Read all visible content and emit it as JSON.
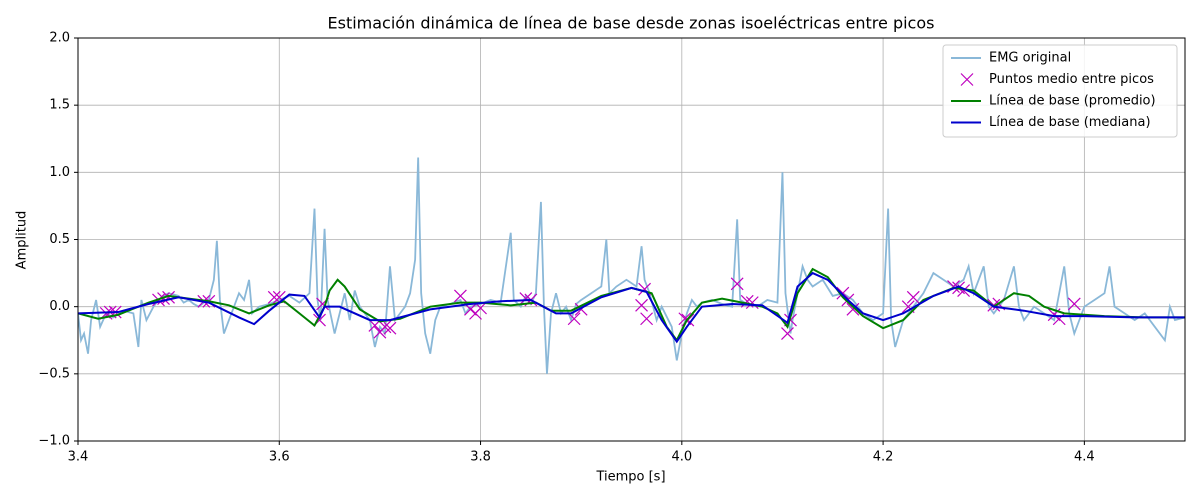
{
  "chart_data": {
    "type": "line",
    "title": "Estimación dinámica de línea de base desde zonas isoeléctricas entre picos",
    "xlabel": "Tiempo [s]",
    "ylabel": "Amplitud",
    "xlim": [
      3.4,
      4.5
    ],
    "ylim": [
      -1.0,
      2.0
    ],
    "xticks": [
      3.4,
      3.6,
      3.8,
      {
        "value": 4.0,
        "label": "4.0"
      },
      4.2,
      4.4
    ],
    "yticks": [
      {
        "value": -1.0,
        "label": "−1.0"
      },
      {
        "value": -0.5,
        "label": "−0.5"
      },
      {
        "value": 0.0,
        "label": "0.0"
      },
      {
        "value": 0.5,
        "label": "0.5"
      },
      {
        "value": 1.0,
        "label": "1.0"
      },
      {
        "value": 1.5,
        "label": "1.5"
      },
      {
        "value": 2.0,
        "label": "2.0"
      }
    ],
    "grid": true,
    "legend": "upper right",
    "series": [
      {
        "name": "EMG original",
        "type": "line",
        "color": "#8ab8d8",
        "x": [
          3.4,
          3.403,
          3.406,
          3.41,
          3.413,
          3.418,
          3.422,
          3.428,
          3.435,
          3.445,
          3.455,
          3.46,
          3.463,
          3.468,
          3.475,
          3.48,
          3.485,
          3.49,
          3.5,
          3.505,
          3.51,
          3.515,
          3.52,
          3.525,
          3.53,
          3.535,
          3.538,
          3.541,
          3.545,
          3.55,
          3.555,
          3.56,
          3.565,
          3.57,
          3.573,
          3.58,
          3.59,
          3.6,
          3.61,
          3.62,
          3.63,
          3.635,
          3.638,
          3.641,
          3.645,
          3.648,
          3.655,
          3.66,
          3.665,
          3.67,
          3.675,
          3.68,
          3.685,
          3.69,
          3.695,
          3.7,
          3.705,
          3.71,
          3.715,
          3.72,
          3.725,
          3.73,
          3.735,
          3.738,
          3.741,
          3.745,
          3.75,
          3.755,
          3.76,
          3.77,
          3.78,
          3.785,
          3.79,
          3.8,
          3.81,
          3.82,
          3.83,
          3.833,
          3.84,
          3.845,
          3.85,
          3.855,
          3.86,
          3.863,
          3.866,
          3.87,
          3.875,
          3.88,
          3.885,
          3.89,
          3.895,
          3.9,
          3.91,
          3.92,
          3.925,
          3.928,
          3.935,
          3.945,
          3.955,
          3.96,
          3.963,
          3.968,
          3.975,
          3.98,
          3.99,
          3.995,
          4.0,
          4.005,
          4.01,
          4.015,
          4.02,
          4.03,
          4.04,
          4.05,
          4.055,
          4.058,
          4.065,
          4.075,
          4.085,
          4.095,
          4.1,
          4.103,
          4.108,
          4.11,
          4.115,
          4.12,
          4.125,
          4.13,
          4.14,
          4.15,
          4.16,
          4.17,
          4.18,
          4.19,
          4.2,
          4.205,
          4.208,
          4.212,
          4.216,
          4.22,
          4.23,
          4.24,
          4.25,
          4.26,
          4.27,
          4.28,
          4.285,
          4.29,
          4.3,
          4.305,
          4.31,
          4.32,
          4.33,
          4.335,
          4.34,
          4.35,
          4.36,
          4.37,
          4.38,
          4.385,
          4.39,
          4.4,
          4.41,
          4.42,
          4.425,
          4.43,
          4.44,
          4.45,
          4.46,
          4.47,
          4.48,
          4.485,
          4.49,
          4.5
        ],
        "values": [
          -0.05,
          -0.25,
          -0.2,
          -0.35,
          -0.1,
          0.05,
          -0.15,
          -0.05,
          -0.08,
          -0.03,
          -0.05,
          -0.3,
          0.05,
          -0.1,
          0.0,
          0.05,
          0.08,
          0.1,
          0.08,
          0.03,
          0.05,
          0.02,
          0.0,
          0.03,
          0.05,
          0.2,
          0.49,
          0.05,
          -0.2,
          -0.1,
          0.0,
          0.1,
          0.05,
          0.2,
          -0.05,
          0.0,
          0.02,
          0.05,
          0.08,
          0.03,
          0.1,
          0.73,
          0.05,
          -0.1,
          0.58,
          0.05,
          -0.2,
          -0.05,
          0.1,
          -0.1,
          0.12,
          0.0,
          -0.05,
          -0.1,
          -0.3,
          -0.15,
          -0.2,
          0.3,
          -0.1,
          -0.05,
          0.0,
          0.1,
          0.35,
          1.11,
          0.1,
          -0.2,
          -0.35,
          -0.1,
          0.0,
          0.02,
          0.05,
          -0.05,
          0.0,
          0.02,
          0.05,
          0.03,
          0.55,
          0.05,
          0.0,
          0.08,
          0.02,
          0.1,
          0.78,
          0.0,
          -0.5,
          -0.05,
          0.1,
          -0.05,
          0.0,
          -0.1,
          0.02,
          0.05,
          0.1,
          0.15,
          0.5,
          0.1,
          0.15,
          0.2,
          0.15,
          0.45,
          0.2,
          0.1,
          -0.1,
          0.0,
          -0.15,
          -0.4,
          -0.2,
          -0.05,
          0.05,
          0.0,
          0.03,
          0.05,
          0.02,
          0.0,
          0.65,
          0.05,
          0.02,
          0.0,
          0.05,
          0.03,
          1.0,
          0.1,
          -0.2,
          -0.1,
          0.1,
          0.3,
          0.2,
          0.15,
          0.2,
          0.08,
          0.1,
          0.05,
          -0.05,
          -0.1,
          -0.05,
          0.73,
          -0.1,
          -0.3,
          -0.2,
          -0.1,
          0.0,
          0.1,
          0.25,
          0.2,
          0.15,
          0.2,
          0.3,
          0.1,
          0.3,
          0.0,
          -0.05,
          0.05,
          0.3,
          0.0,
          -0.1,
          0.0,
          -0.05,
          -0.1,
          0.3,
          -0.05,
          -0.2,
          0.0,
          0.05,
          0.1,
          0.3,
          0.0,
          -0.05,
          -0.1,
          -0.05,
          -0.15,
          -0.25,
          0.0,
          -0.1,
          -0.08
        ]
      },
      {
        "name": "Puntos medio entre picos",
        "type": "scatter",
        "color": "#bf00bf",
        "x": [
          3.428,
          3.432,
          3.437,
          3.48,
          3.485,
          3.49,
          3.525,
          3.53,
          3.595,
          3.6,
          3.64,
          3.643,
          3.695,
          3.7,
          3.705,
          3.71,
          3.78,
          3.79,
          3.795,
          3.8,
          3.845,
          3.85,
          3.893,
          3.9,
          3.96,
          3.963,
          3.965,
          4.003,
          4.006,
          4.055,
          4.065,
          4.07,
          4.105,
          4.108,
          4.16,
          4.165,
          4.17,
          4.225,
          4.23,
          4.27,
          4.275,
          4.28,
          4.31,
          4.315,
          4.37,
          4.375,
          4.39
        ],
        "values": [
          -0.05,
          -0.04,
          -0.04,
          0.05,
          0.06,
          0.07,
          0.04,
          0.04,
          0.07,
          0.07,
          -0.1,
          0.02,
          -0.14,
          -0.19,
          -0.15,
          -0.16,
          0.08,
          -0.02,
          -0.05,
          -0.01,
          0.06,
          0.05,
          -0.09,
          -0.02,
          0.01,
          0.13,
          -0.09,
          -0.09,
          -0.1,
          0.17,
          0.04,
          0.03,
          -0.2,
          -0.1,
          0.1,
          0.05,
          -0.02,
          0.0,
          0.07,
          0.15,
          0.14,
          0.12,
          0.01,
          0.02,
          -0.06,
          -0.09,
          0.02
        ]
      },
      {
        "name": "Línea de base (promedio)",
        "type": "line",
        "color": "#008000",
        "x": [
          3.4,
          3.42,
          3.44,
          3.47,
          3.49,
          3.51,
          3.53,
          3.55,
          3.57,
          3.59,
          3.605,
          3.62,
          3.635,
          3.645,
          3.65,
          3.658,
          3.665,
          3.68,
          3.7,
          3.72,
          3.75,
          3.78,
          3.8,
          3.83,
          3.855,
          3.87,
          3.89,
          3.92,
          3.95,
          3.97,
          3.985,
          3.995,
          4.005,
          4.02,
          4.04,
          4.06,
          4.08,
          4.095,
          4.105,
          4.115,
          4.13,
          4.145,
          4.16,
          4.18,
          4.2,
          4.22,
          4.24,
          4.27,
          4.29,
          4.31,
          4.33,
          4.345,
          4.36,
          4.38,
          4.42,
          4.46,
          4.5
        ],
        "values": [
          -0.05,
          -0.09,
          -0.06,
          0.03,
          0.08,
          0.06,
          0.04,
          0.01,
          -0.05,
          0.01,
          0.04,
          -0.05,
          -0.14,
          0.0,
          0.12,
          0.2,
          0.15,
          -0.02,
          -0.11,
          -0.09,
          0.0,
          0.03,
          0.03,
          0.01,
          0.03,
          -0.03,
          -0.03,
          0.08,
          0.14,
          0.1,
          -0.15,
          -0.25,
          -0.1,
          0.03,
          0.06,
          0.03,
          0.0,
          -0.05,
          -0.15,
          0.1,
          0.28,
          0.22,
          0.07,
          -0.07,
          -0.16,
          -0.1,
          0.05,
          0.14,
          0.12,
          0.0,
          0.1,
          0.08,
          0.0,
          -0.05,
          -0.07,
          -0.08,
          -0.08
        ]
      },
      {
        "name": "Línea de base (mediana)",
        "type": "line",
        "color": "#0000cc",
        "x": [
          3.4,
          3.44,
          3.47,
          3.5,
          3.53,
          3.56,
          3.575,
          3.59,
          3.61,
          3.625,
          3.64,
          3.645,
          3.66,
          3.69,
          3.71,
          3.75,
          3.79,
          3.82,
          3.85,
          3.875,
          3.89,
          3.92,
          3.95,
          3.965,
          3.98,
          3.995,
          4.005,
          4.02,
          4.05,
          4.08,
          4.105,
          4.115,
          4.13,
          4.145,
          4.165,
          4.18,
          4.2,
          4.22,
          4.25,
          4.275,
          4.29,
          4.31,
          4.34,
          4.37,
          4.4,
          4.45,
          4.5
        ],
        "values": [
          -0.05,
          -0.04,
          0.02,
          0.07,
          0.03,
          -0.08,
          -0.13,
          -0.03,
          0.09,
          0.08,
          -0.08,
          0.0,
          0.0,
          -0.1,
          -0.1,
          -0.02,
          0.02,
          0.04,
          0.05,
          -0.05,
          -0.05,
          0.07,
          0.14,
          0.11,
          -0.1,
          -0.26,
          -0.15,
          0.0,
          0.02,
          0.01,
          -0.12,
          0.15,
          0.25,
          0.2,
          0.05,
          -0.05,
          -0.1,
          -0.05,
          0.08,
          0.15,
          0.1,
          0.0,
          -0.03,
          -0.07,
          -0.07,
          -0.08,
          -0.08
        ]
      }
    ]
  }
}
